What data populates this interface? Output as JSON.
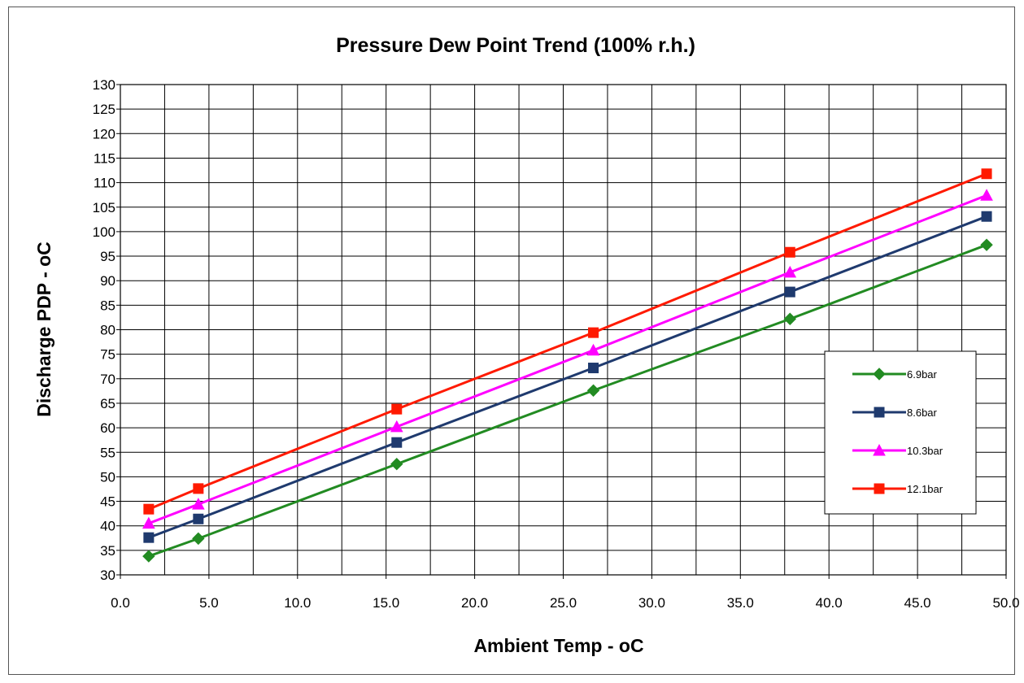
{
  "chart_data": {
    "type": "line",
    "title": "Pressure Dew Point Trend (100% r.h.)",
    "xlabel": "Ambient Temp - oC",
    "ylabel": "Discharge PDP - oC",
    "xlim": [
      0,
      50
    ],
    "ylim": [
      30,
      130
    ],
    "x_ticks": [
      0,
      5,
      10,
      15,
      20,
      25,
      30,
      35,
      40,
      45,
      50
    ],
    "x_tick_labels": [
      "0.0",
      "5.0",
      "10.0",
      "15.0",
      "20.0",
      "25.0",
      "30.0",
      "35.0",
      "40.0",
      "45.0",
      "50.0"
    ],
    "y_ticks": [
      30,
      35,
      40,
      45,
      50,
      55,
      60,
      65,
      70,
      75,
      80,
      85,
      90,
      95,
      100,
      105,
      110,
      115,
      120,
      125,
      130
    ],
    "grid": true,
    "legend_position": "right",
    "x": [
      1.6,
      4.4,
      15.6,
      26.7,
      37.8,
      48.9
    ],
    "series": [
      {
        "name": "6.9bar",
        "color": "#228B22",
        "marker": "diamond",
        "values": [
          33.8,
          37.4,
          52.6,
          67.6,
          82.2,
          97.3
        ]
      },
      {
        "name": "8.6bar",
        "color": "#1F3A6E",
        "marker": "square",
        "values": [
          37.6,
          41.4,
          57.0,
          72.2,
          87.7,
          103.1
        ]
      },
      {
        "name": "10.3bar",
        "color": "#FF00FF",
        "marker": "triangle",
        "values": [
          40.5,
          44.4,
          60.2,
          75.8,
          91.7,
          107.4
        ]
      },
      {
        "name": "12.1bar",
        "color": "#FF1A00",
        "marker": "square",
        "values": [
          43.4,
          47.6,
          63.8,
          79.4,
          95.8,
          111.8
        ]
      }
    ]
  }
}
